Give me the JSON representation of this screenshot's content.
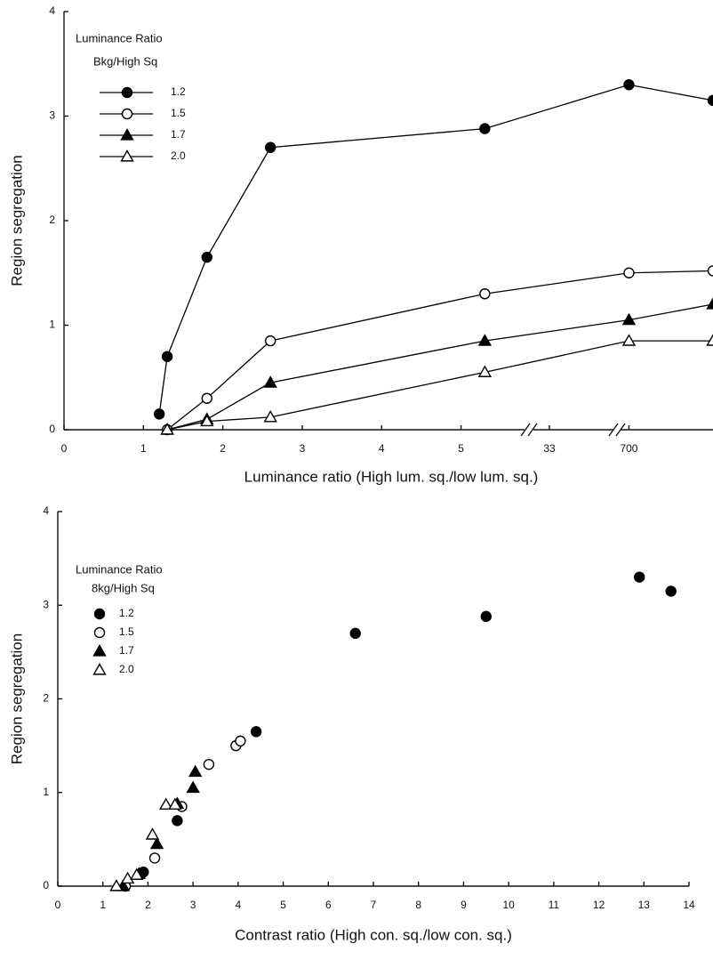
{
  "chart_data": [
    {
      "type": "line",
      "ylabel": "Region segregation",
      "xlabel": "Luminance ratio (High lum. sq./low lum. sq.)",
      "legend_title": [
        "Luminance Ratio",
        "Bkg/High Sq"
      ],
      "legend": "upper left",
      "x": [
        1.2,
        1.3,
        1.8,
        2.6,
        5.3,
        700,
        800
      ],
      "xlim": [
        [
          0,
          5.8
        ],
        [
          30,
          45
        ],
        [
          690,
          800
        ]
      ],
      "xticks": [
        0,
        1,
        2,
        3,
        4,
        5,
        33,
        700
      ],
      "ylim": [
        0,
        4
      ],
      "yticks": [
        0,
        1,
        2,
        3,
        4
      ],
      "series": [
        {
          "name": "1.2",
          "color": "#000000",
          "marker": "filled-circle",
          "values": [
            0.15,
            0.7,
            1.65,
            2.7,
            2.88,
            3.3,
            3.15
          ]
        },
        {
          "name": "1.5",
          "color": "#000000",
          "marker": "open-circle",
          "values": [
            null,
            0,
            0.3,
            0.85,
            1.3,
            1.5,
            1.52
          ]
        },
        {
          "name": "1.7",
          "color": "#000000",
          "marker": "filled-triangle",
          "values": [
            null,
            0,
            0.1,
            0.45,
            0.85,
            1.05,
            1.2
          ]
        },
        {
          "name": "2.0",
          "color": "#000000",
          "marker": "open-triangle",
          "values": [
            null,
            0,
            0.08,
            0.12,
            0.55,
            0.85,
            0.85
          ]
        }
      ]
    },
    {
      "type": "scatter",
      "ylabel": "Region segregation",
      "xlabel": "Contrast ratio (High con. sq./low con. sq.)",
      "legend_title": [
        "Luminance Ratio",
        "8kg/High Sq"
      ],
      "legend": "upper left",
      "xlim": [
        0,
        14
      ],
      "xticks": [
        0,
        1,
        2,
        3,
        4,
        5,
        6,
        7,
        8,
        9,
        10,
        11,
        12,
        13,
        14
      ],
      "ylim": [
        0,
        4
      ],
      "yticks": [
        0,
        1,
        2,
        3,
        4
      ],
      "series": [
        {
          "name": "1.2",
          "color": "#000000",
          "marker": "filled-circle",
          "x": [
            1.9,
            2.65,
            4.4,
            6.6,
            9.5,
            12.9,
            13.6
          ],
          "values": [
            0.15,
            0.7,
            1.65,
            2.7,
            2.88,
            3.3,
            3.15
          ]
        },
        {
          "name": "1.5",
          "color": "#000000",
          "marker": "open-circle",
          "x": [
            1.5,
            2.15,
            2.75,
            3.35,
            3.95,
            4.05
          ],
          "values": [
            0,
            0.3,
            0.85,
            1.3,
            1.5,
            1.55
          ]
        },
        {
          "name": "1.7",
          "color": "#000000",
          "marker": "filled-triangle",
          "x": [
            1.45,
            1.8,
            2.2,
            2.65,
            3.0,
            3.05
          ],
          "values": [
            0,
            0.13,
            0.45,
            0.88,
            1.05,
            1.22
          ]
        },
        {
          "name": "2.0",
          "color": "#000000",
          "marker": "open-triangle",
          "x": [
            1.3,
            1.55,
            1.75,
            2.1,
            2.4,
            2.6
          ],
          "values": [
            0,
            0.08,
            0.12,
            0.55,
            0.87,
            0.87
          ]
        }
      ]
    }
  ]
}
